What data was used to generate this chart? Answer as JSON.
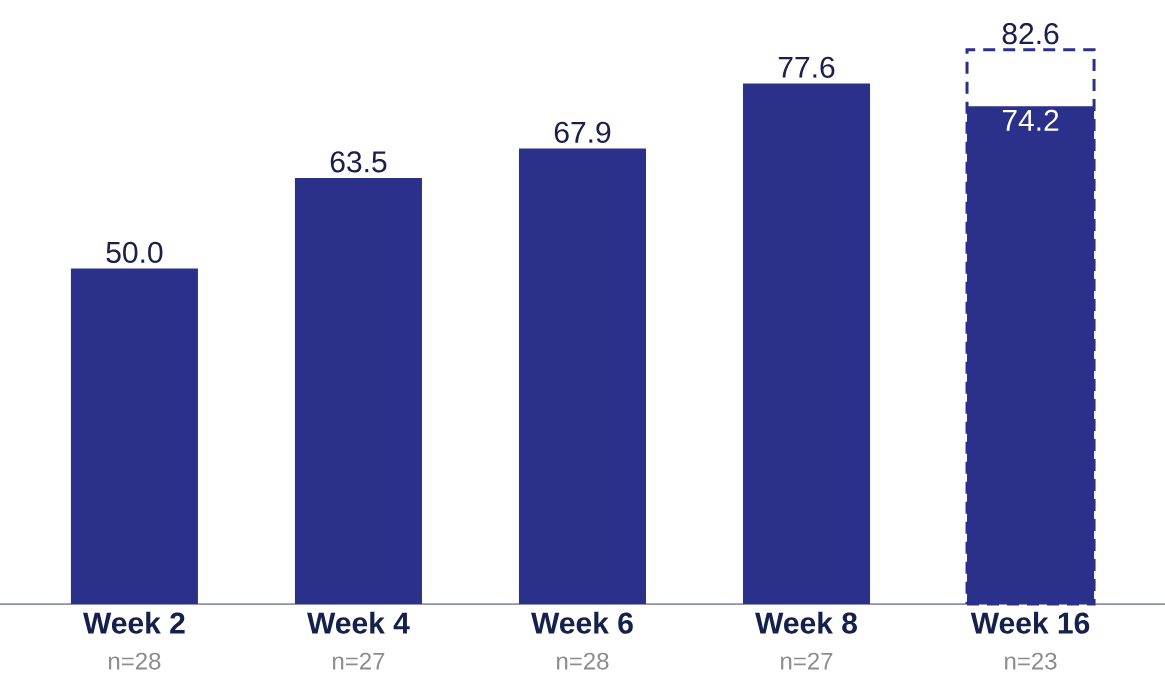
{
  "chart_data": {
    "type": "bar",
    "categories": [
      "Week 2",
      "Week 4",
      "Week 6",
      "Week 8",
      "Week 16"
    ],
    "series": [
      {
        "color": "#2b318a",
        "values": [
          50.0,
          63.5,
          67.9,
          77.6,
          74.2
        ],
        "value_labels": [
          "50.0",
          "63.5",
          "67.9",
          "77.6",
          "74.2"
        ]
      },
      {
        "color": "#2b318a",
        "line_style": "dashed",
        "values": [
          null,
          null,
          null,
          null,
          82.6
        ],
        "value_labels": [
          null,
          null,
          null,
          null,
          "82.6"
        ]
      }
    ],
    "annotations": [
      "n=28",
      "n=27",
      "n=28",
      "n=27",
      "n=23"
    ]
  }
}
